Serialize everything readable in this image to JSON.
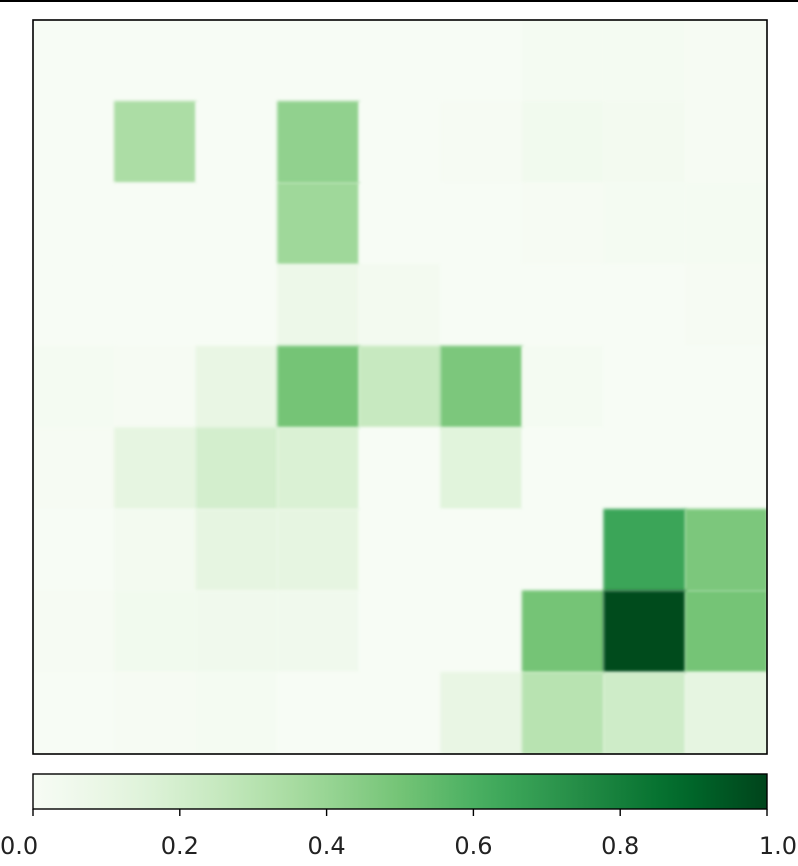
{
  "chart_data": {
    "type": "heatmap",
    "colormap": "Greens",
    "nrows": 9,
    "ncols": 9,
    "values": [
      [
        0.0,
        0.0,
        0.0,
        0.0,
        0.0,
        0.0,
        0.02,
        0.02,
        0.01
      ],
      [
        0.0,
        0.34,
        0.0,
        0.42,
        0.0,
        0.01,
        0.04,
        0.03,
        0.01
      ],
      [
        0.0,
        0.0,
        0.0,
        0.38,
        0.0,
        0.0,
        0.01,
        0.02,
        0.02
      ],
      [
        0.0,
        0.0,
        0.0,
        0.07,
        0.03,
        0.0,
        0.0,
        0.0,
        0.01
      ],
      [
        0.02,
        0.01,
        0.1,
        0.5,
        0.25,
        0.48,
        0.02,
        0.0,
        0.0
      ],
      [
        0.01,
        0.12,
        0.2,
        0.17,
        0.0,
        0.14,
        0.0,
        0.0,
        0.0
      ],
      [
        0.0,
        0.03,
        0.12,
        0.12,
        0.0,
        0.0,
        0.0,
        0.65,
        0.48
      ],
      [
        0.01,
        0.04,
        0.05,
        0.05,
        0.0,
        0.0,
        0.5,
        0.98,
        0.5
      ],
      [
        0.0,
        0.01,
        0.02,
        0.0,
        0.0,
        0.1,
        0.3,
        0.22,
        0.12
      ]
    ],
    "colorbar": {
      "range": [
        0.0,
        1.0
      ],
      "ticks": [
        "0.0",
        "0.2",
        "0.4",
        "0.6",
        "0.8",
        "1.0"
      ],
      "orientation": "horizontal"
    },
    "title": "",
    "xlabel": "",
    "ylabel": ""
  }
}
